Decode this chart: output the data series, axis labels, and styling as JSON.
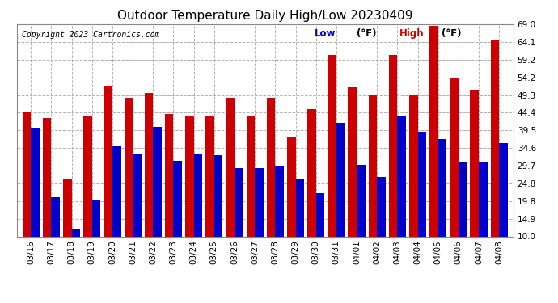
{
  "title": "Outdoor Temperature Daily High/Low 20230409",
  "copyright": "Copyright 2023 Cartronics.com",
  "legend_low": "Low",
  "legend_high": "High",
  "legend_unit": "(°F)",
  "ylim": [
    10.0,
    69.0
  ],
  "yticks": [
    10.0,
    14.9,
    19.8,
    24.8,
    29.7,
    34.6,
    39.5,
    44.4,
    49.3,
    54.2,
    59.2,
    64.1,
    69.0
  ],
  "dates": [
    "03/16",
    "03/17",
    "03/18",
    "03/19",
    "03/20",
    "03/21",
    "03/22",
    "03/23",
    "03/24",
    "03/25",
    "03/26",
    "03/27",
    "03/28",
    "03/29",
    "03/30",
    "03/31",
    "04/01",
    "04/02",
    "04/03",
    "04/04",
    "04/05",
    "04/06",
    "04/07",
    "04/08"
  ],
  "highs": [
    44.4,
    43.0,
    26.0,
    43.5,
    51.8,
    48.5,
    49.8,
    44.0,
    43.5,
    43.5,
    48.5,
    43.5,
    48.5,
    37.5,
    45.5,
    60.5,
    51.5,
    49.5,
    60.5,
    49.5,
    68.5,
    54.0,
    50.5,
    64.5
  ],
  "lows": [
    40.0,
    21.0,
    12.0,
    20.0,
    35.0,
    33.0,
    40.5,
    31.0,
    33.0,
    32.5,
    29.0,
    29.0,
    29.5,
    26.0,
    22.0,
    41.5,
    30.0,
    26.5,
    43.5,
    39.0,
    37.0,
    30.5,
    30.5,
    36.0
  ],
  "bar_color_high": "#cc0000",
  "bar_color_low": "#0000cc",
  "background_color": "#ffffff",
  "grid_color": "#b0b0b0",
  "title_fontsize": 11,
  "copyright_fontsize": 7,
  "tick_fontsize": 7.5,
  "legend_fontsize": 8.5
}
